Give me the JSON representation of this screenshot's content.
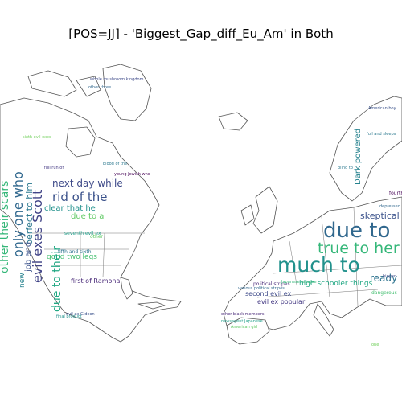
{
  "title": "[POS=JJ] - 'Biggest_Gap_diff_Eu_Am' in Both",
  "americas_words": [
    {
      "text": "rid of the",
      "color": "#3b528b"
    },
    {
      "text": "next day while",
      "color": "#3e4a89"
    },
    {
      "text": "evil exes Scott",
      "color": "#414487"
    },
    {
      "text": "only one who",
      "color": "#31688e"
    },
    {
      "text": "other their scars",
      "color": "#35b779"
    },
    {
      "text": "perfect to him",
      "color": "#2a788e"
    },
    {
      "text": "clear that he",
      "color": "#21918c"
    },
    {
      "text": "due to a",
      "color": "#5ec962"
    },
    {
      "text": "good two legs",
      "color": "#44bf70"
    },
    {
      "text": "job and",
      "color": "#3b528b"
    },
    {
      "text": "new",
      "color": "#26828e"
    },
    {
      "text": "due to their",
      "color": "#22a884"
    },
    {
      "text": "first of Ramona",
      "color": "#482878"
    },
    {
      "text": "fifth and sixth",
      "color": "#2c728e"
    },
    {
      "text": "seventh evil ex",
      "color": "#1f9e89"
    },
    {
      "text": "other",
      "color": "#5ec962"
    },
    {
      "text": "whole mushroom kingdom",
      "color": "#3e4a89"
    },
    {
      "text": "other three",
      "color": "#31688e"
    },
    {
      "text": "blood of the",
      "color": "#2a788e"
    },
    {
      "text": "young Jewish who",
      "color": "#440154"
    },
    {
      "text": "final product",
      "color": "#21918c"
    },
    {
      "text": "full run of",
      "color": "#443983"
    },
    {
      "text": "sixth evil exes",
      "color": "#6ece58"
    },
    {
      "text": "evil ex Gideon",
      "color": "#3b528b"
    }
  ],
  "europe_words": [
    {
      "text": "due to",
      "color": "#31688e"
    },
    {
      "text": "much to",
      "color": "#21918c"
    },
    {
      "text": "true to her",
      "color": "#35b779"
    },
    {
      "text": "skeptical",
      "color": "#3b528b"
    },
    {
      "text": "Dark powered",
      "color": "#26828e"
    },
    {
      "text": "ready",
      "color": "#2c728e"
    },
    {
      "text": "high schooler things",
      "color": "#22a884"
    },
    {
      "text": "evil ex popular",
      "color": "#443983"
    },
    {
      "text": "second evil ex",
      "color": "#3e4a89"
    },
    {
      "text": "political stripes",
      "color": "#482878"
    },
    {
      "text": "various political stripes",
      "color": "#31688e"
    },
    {
      "text": "dangerous",
      "color": "#44bf70"
    },
    {
      "text": "fourth",
      "color": "#440154"
    },
    {
      "text": "full and sleeps",
      "color": "#2a788e"
    },
    {
      "text": "American boy",
      "color": "#3b528b"
    },
    {
      "text": "other black members",
      "color": "#482878"
    },
    {
      "text": "newsagent Japanese",
      "color": "#1f9e89"
    },
    {
      "text": "American girl",
      "color": "#5ec962"
    },
    {
      "text": "blind to",
      "color": "#2a788e"
    },
    {
      "text": "Japanese refugee",
      "color": "#35b779"
    },
    {
      "text": "depressed",
      "color": "#31688e"
    },
    {
      "text": "bigger",
      "color": "#3e4a89"
    },
    {
      "text": "one",
      "color": "#6ece58"
    }
  ]
}
